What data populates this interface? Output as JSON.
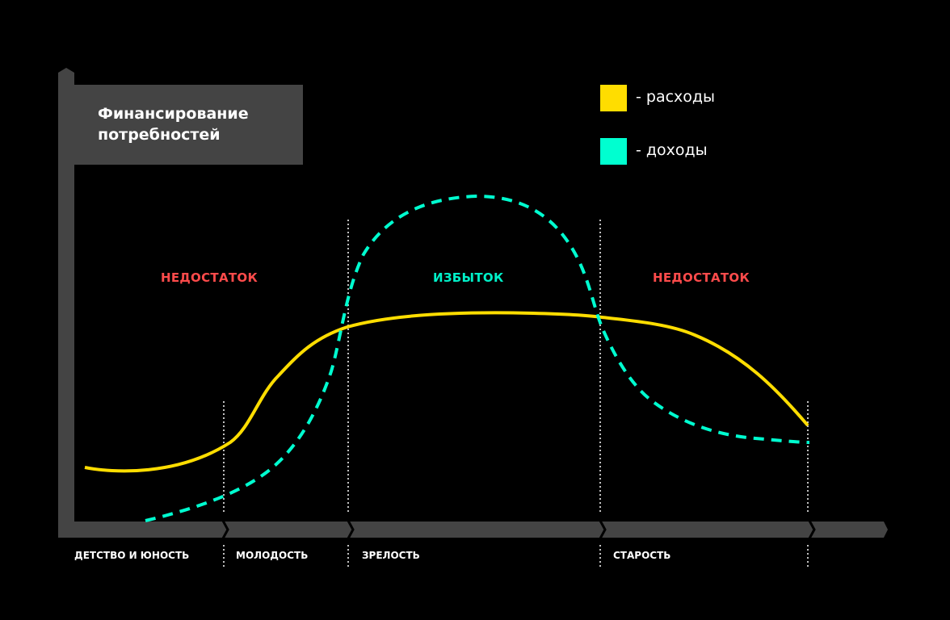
{
  "title": "Финансирование потребностей",
  "legend": [
    {
      "label": "- расходы",
      "color": "#FFDD00"
    },
    {
      "label": "- доходы",
      "color": "#00FFD0"
    }
  ],
  "zones": [
    {
      "label": "НЕДОСТАТОК",
      "color": "#FF4B4B"
    },
    {
      "label": "ИЗБЫТОК",
      "color": "#00F0C8"
    },
    {
      "label": "НЕДОСТАТОК",
      "color": "#FF4B4B"
    }
  ],
  "stages": [
    "ДЕТСТВО И ЮНОСТЬ",
    "МОЛОДОСТЬ",
    "ЗРЕЛОСТЬ",
    "СТАРОСТЬ"
  ]
}
